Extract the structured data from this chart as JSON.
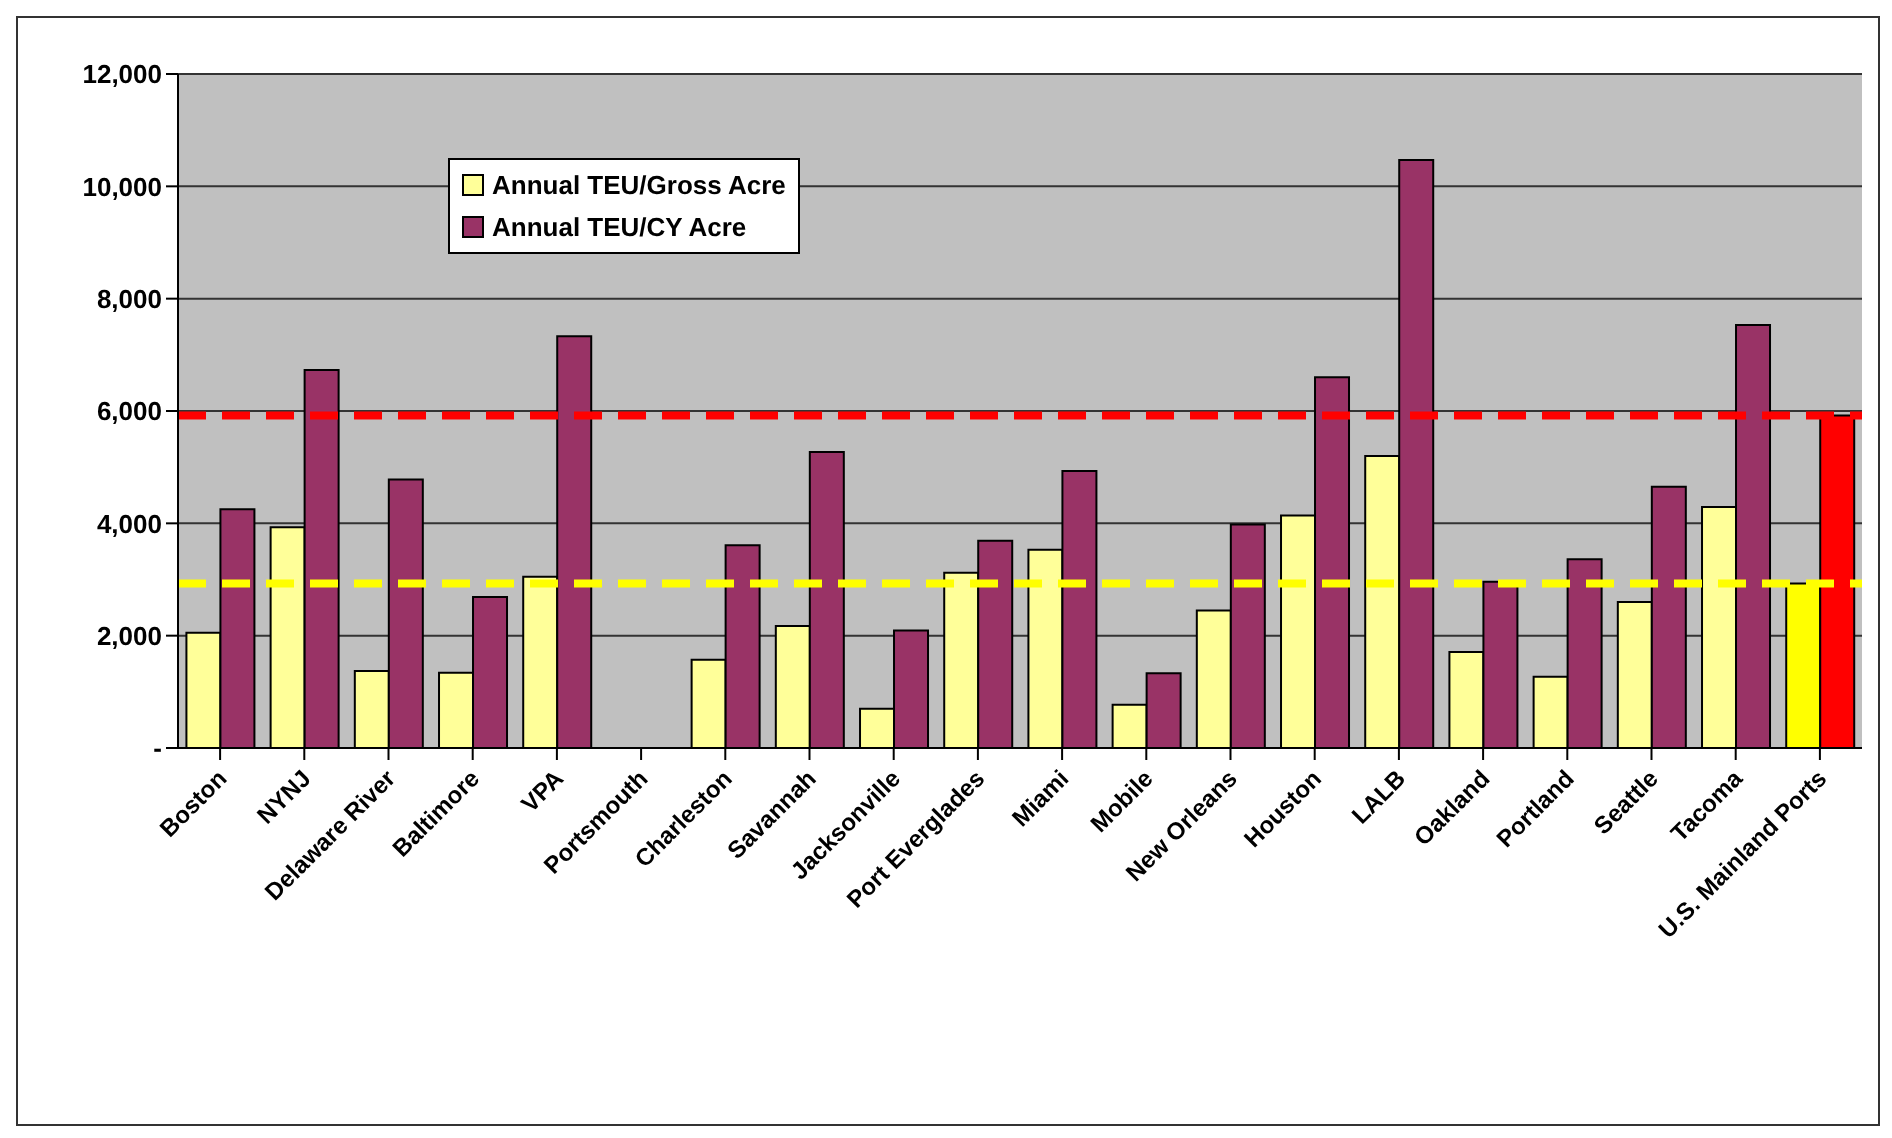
{
  "chart_data": {
    "type": "bar",
    "categories": [
      "Boston",
      "NYNJ",
      "Delaware River",
      "Baltimore",
      "VPA",
      "Portsmouth",
      "Charleston",
      "Savannah",
      "Jacksonville",
      "Port Everglades",
      "Miami",
      "Mobile",
      "New Orleans",
      "Houston",
      "LALB",
      "Oakland",
      "Portland",
      "Seattle",
      "Tacoma",
      "U.S. Mainland Ports"
    ],
    "series": [
      {
        "name": "Annual TEU/Gross Acre",
        "color": "#ffff99",
        "colors": [
          "#ffff99",
          "#ffff99",
          "#ffff99",
          "#ffff99",
          "#ffff99",
          "#ffff99",
          "#ffff99",
          "#ffff99",
          "#ffff99",
          "#ffff99",
          "#ffff99",
          "#ffff99",
          "#ffff99",
          "#ffff99",
          "#ffff99",
          "#ffff99",
          "#ffff99",
          "#ffff99",
          "#ffff99",
          "#ffff00"
        ],
        "values": [
          2050,
          3930,
          1370,
          1340,
          3050,
          null,
          1570,
          2170,
          700,
          3120,
          3530,
          770,
          2450,
          4140,
          5200,
          1710,
          1270,
          2600,
          4290,
          2930
        ]
      },
      {
        "name": "Annual TEU/CY Acre",
        "color": "#993366",
        "colors": [
          "#993366",
          "#993366",
          "#993366",
          "#993366",
          "#993366",
          "#993366",
          "#993366",
          "#993366",
          "#993366",
          "#993366",
          "#993366",
          "#993366",
          "#993366",
          "#993366",
          "#993366",
          "#993366",
          "#993366",
          "#993366",
          "#993366",
          "#ff0000"
        ],
        "values": [
          4250,
          6730,
          4780,
          2690,
          7330,
          null,
          3610,
          5270,
          2090,
          3690,
          4930,
          1330,
          3980,
          6600,
          10470,
          2960,
          3360,
          4650,
          7530,
          5920
        ]
      }
    ],
    "ylim": [
      0,
      12000
    ],
    "yticks": [
      {
        "value": 0,
        "label": "-"
      },
      {
        "value": 2000,
        "label": "2,000"
      },
      {
        "value": 4000,
        "label": "4,000"
      },
      {
        "value": 6000,
        "label": "6,000"
      },
      {
        "value": 8000,
        "label": "8,000"
      },
      {
        "value": 10000,
        "label": "10,000"
      },
      {
        "value": 12000,
        "label": "12,000"
      }
    ],
    "grid": "y",
    "legend": "top left",
    "ref_lines": [
      {
        "axis": "y",
        "value": 5920,
        "color": "#ff0000",
        "line_style": "dashed"
      },
      {
        "axis": "y",
        "value": 2930,
        "color": "#ffff00",
        "line_style": "dashed"
      }
    ]
  }
}
